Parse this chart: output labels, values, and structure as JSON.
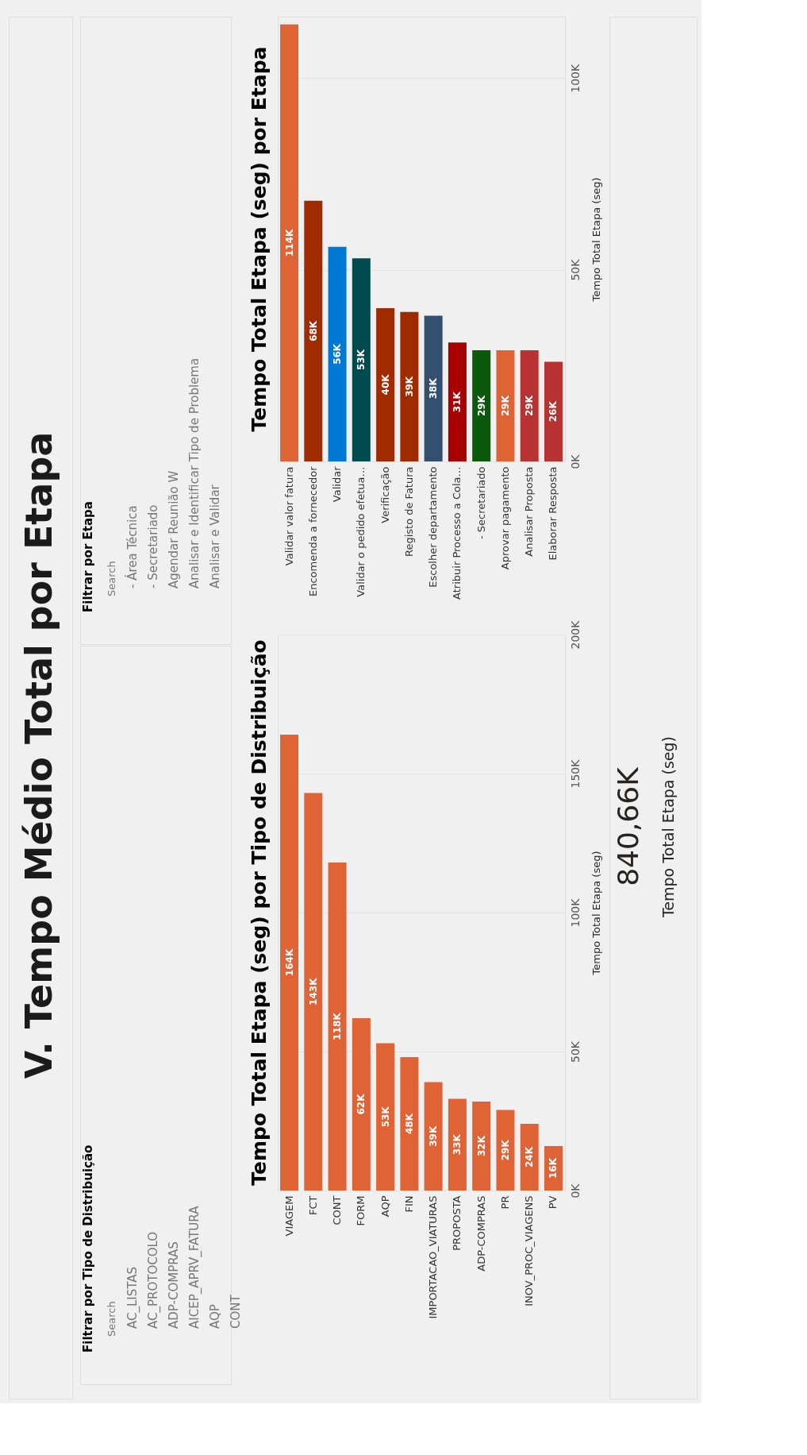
{
  "chart_data": [
    {
      "type": "other",
      "title": "V. Tempo Médio Total por Etapa"
    },
    {
      "type": "other",
      "title": "Filtrar por Etapa",
      "annotations": [
        "Search",
        "- Área Técnica",
        "- Secretariado",
        "Agendar Reunião W",
        "Analisar e Identificar Tipo de Problema",
        "Analisar e Validar"
      ]
    },
    {
      "type": "other",
      "title": "Filtrar por Tipo de Distribuição",
      "annotations": [
        "Search",
        "AC_LISTAS",
        "AC_PROTOCOLO",
        "ADP-COMPRAS",
        "AICEP_APRV_FATURA",
        "AQP",
        "CONT"
      ]
    },
    {
      "type": "bar",
      "title": "Tempo Total Etapa (seg) por Etapa",
      "ylabel": "Tempo Total Etapa (seg)",
      "categories": [
        "Validar valor fatura",
        "Encomenda a fornecedor",
        "Validar",
        "Validar o pedido efetua…",
        "Verificação",
        "Registo de Fatura",
        "Escolher departamento",
        "Atribuir Processo a Cola…",
        "- Secretariado",
        "Aprovar pagamento",
        "Analisar Proposta",
        "Elaborar Resposta"
      ],
      "values": [
        114000,
        68000,
        56000,
        53000,
        40000,
        39000,
        38000,
        31000,
        29000,
        29000,
        29000,
        26000
      ],
      "colors": [
        "#e06336",
        "#a02b00",
        "#0078d4",
        "#004b50",
        "#a02b00",
        "#a02b00",
        "#34506f",
        "#a80000",
        "#0b5a0b",
        "#e06336",
        "#b83232",
        "#b83232"
      ],
      "value_labels": [
        "114K",
        "68K",
        "56K",
        "53K",
        "40K",
        "39K",
        "38K",
        "31K",
        "29K",
        "29K",
        "29K",
        "26K"
      ],
      "ylim": [
        0,
        116000
      ],
      "yticks": [
        {
          "value": 0,
          "label": "0K"
        },
        {
          "value": 50000,
          "label": "50K"
        },
        {
          "value": 100000,
          "label": "100K"
        }
      ],
      "grid": "y"
    },
    {
      "type": "bar",
      "title": "Tempo Total Etapa (seg) por Tipo de Distribuição",
      "ylabel": "Tempo Total Etapa (seg)",
      "categories": [
        "VIAGEM",
        "FCT",
        "CONT",
        "FORM",
        "AQP",
        "FIN",
        "IMPORTACAO_VIATURAS",
        "PROPOSTA",
        "ADP-COMPRAS",
        "PR",
        "INOV_PROC_VIAGENS",
        "PV"
      ],
      "values": [
        164000,
        143000,
        118000,
        62000,
        53000,
        48000,
        39000,
        33000,
        32000,
        29000,
        24000,
        16000
      ],
      "colors": [
        "#e06336",
        "#e06336",
        "#e06336",
        "#e06336",
        "#e06336",
        "#e06336",
        "#e06336",
        "#e06336",
        "#e06336",
        "#e06336",
        "#e06336",
        "#e06336"
      ],
      "value_labels": [
        "164K",
        "143K",
        "118K",
        "62K",
        "53K",
        "48K",
        "39K",
        "33K",
        "32K",
        "29K",
        "24K",
        "16K"
      ],
      "ylim": [
        0,
        200000
      ],
      "yticks": [
        {
          "value": 0,
          "label": "0K"
        },
        {
          "value": 50000,
          "label": "50K"
        },
        {
          "value": 100000,
          "label": "100K"
        },
        {
          "value": 150000,
          "label": "150K"
        },
        {
          "value": 200000,
          "label": "200K"
        }
      ],
      "grid": "y"
    },
    {
      "type": "other",
      "annotations": [
        "840,66K",
        "Tempo Total Etapa (seg)"
      ]
    }
  ]
}
